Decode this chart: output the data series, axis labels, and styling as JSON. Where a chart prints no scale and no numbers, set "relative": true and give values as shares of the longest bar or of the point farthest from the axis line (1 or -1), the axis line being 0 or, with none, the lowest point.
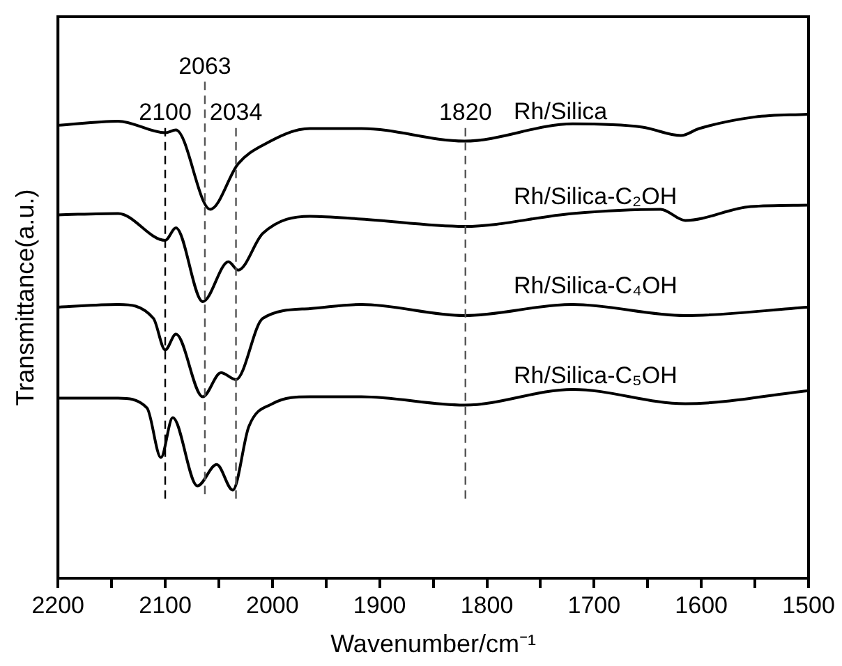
{
  "chart_data": {
    "type": "line",
    "relative": true,
    "xlabel": "Wavenumber/cm⁻¹",
    "ylabel": "Transmittance(a.u.)",
    "xlim": [
      2200,
      1500
    ],
    "xticks": [
      2200,
      {
        "value": 2150,
        "label": null
      },
      2100,
      {
        "value": 2050,
        "label": null
      },
      2000,
      {
        "value": 1950,
        "label": null
      },
      1900,
      {
        "value": 1850,
        "label": null
      },
      1800,
      {
        "value": 1750,
        "label": null
      },
      1700,
      {
        "value": 1650,
        "label": null
      },
      1600,
      {
        "value": 1550,
        "label": null
      },
      1500
    ],
    "grid": false,
    "legend": false,
    "marker": "none",
    "line_style": "solid",
    "series": [
      {
        "name": "Rh/Silica",
        "color": "#000000",
        "x": [
          2200,
          2144,
          2100,
          2090,
          2058,
          2032,
          2009,
          1965,
          1917,
          1821,
          1720,
          1655,
          1619,
          1602,
          1550,
          1501
        ],
        "values": [
          0.976,
          0.985,
          0.96,
          0.966,
          0.795,
          0.893,
          0.933,
          0.969,
          0.969,
          0.942,
          0.979,
          0.972,
          0.954,
          0.969,
          0.994,
          1
        ]
      },
      {
        "name": "Rh/Silica-C₂OH",
        "color": "#000000",
        "x": [
          2200,
          2144,
          2100,
          2090,
          2065,
          2041,
          2032,
          2009,
          1965,
          1917,
          1821,
          1720,
          1638,
          1615,
          1554,
          1501
        ],
        "values": [
          0.783,
          0.786,
          0.728,
          0.755,
          0.596,
          0.682,
          0.664,
          0.743,
          0.78,
          0.774,
          0.758,
          0.786,
          0.795,
          0.771,
          0.801,
          0.804
        ]
      },
      {
        "name": "Rh/Silica-C₄OH",
        "color": "#000000",
        "x": [
          2200,
          2144,
          2111,
          2100,
          2090,
          2065,
          2048,
          2034,
          2009,
          1965,
          1917,
          1821,
          1720,
          1615,
          1501
        ],
        "values": [
          0.584,
          0.59,
          0.56,
          0.492,
          0.526,
          0.391,
          0.443,
          0.428,
          0.56,
          0.581,
          0.59,
          0.566,
          0.59,
          0.566,
          0.584
        ]
      },
      {
        "name": "Rh/Silica-C₅OH",
        "color": "#000000",
        "x": [
          2200,
          2144,
          2117,
          2104,
          2093,
          2070,
          2052,
          2037,
          2022,
          2000,
          1965,
          1917,
          1821,
          1720,
          1615,
          1501
        ],
        "values": [
          0.388,
          0.388,
          0.367,
          0.26,
          0.346,
          0.199,
          0.245,
          0.19,
          0.327,
          0.376,
          0.391,
          0.391,
          0.373,
          0.407,
          0.376,
          0.404
        ]
      }
    ],
    "ref_lines": [
      {
        "axis": "x",
        "value": 2100,
        "label": "2100",
        "color": "#000000",
        "line_style": "dashed"
      },
      {
        "axis": "x",
        "value": 2063,
        "label": "2063",
        "color": "#555555",
        "line_style": "dashed"
      },
      {
        "axis": "x",
        "value": 2034,
        "label": "2034",
        "color": "#555555",
        "line_style": "dashed"
      },
      {
        "axis": "x",
        "value": 1820,
        "label": "1820",
        "color": "#555555",
        "line_style": "dashed"
      }
    ]
  }
}
